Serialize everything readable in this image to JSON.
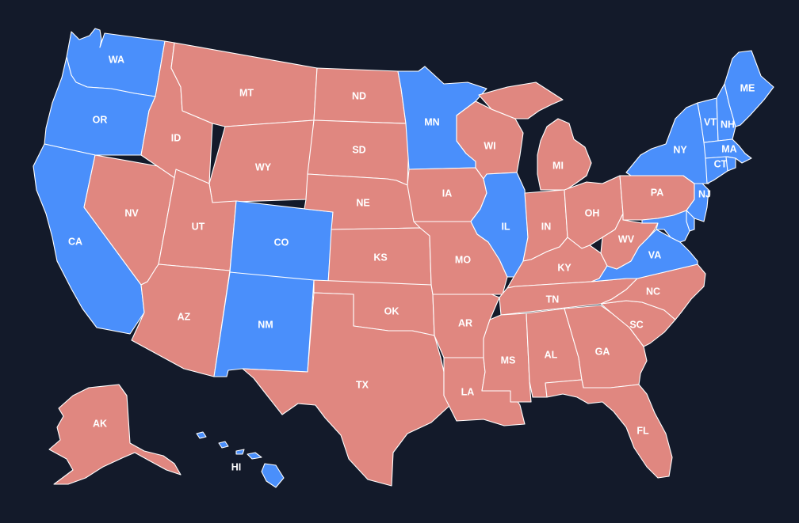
{
  "colors": {
    "background": "#131a2a",
    "blue": "#4a8ffb",
    "red": "#e08780",
    "border": "#ffffff",
    "label": "#ffffff"
  },
  "states": [
    {
      "code": "WA",
      "color": "blue"
    },
    {
      "code": "OR",
      "color": "blue"
    },
    {
      "code": "CA",
      "color": "blue"
    },
    {
      "code": "NV",
      "color": "red"
    },
    {
      "code": "ID",
      "color": "red"
    },
    {
      "code": "MT",
      "color": "red"
    },
    {
      "code": "WY",
      "color": "red"
    },
    {
      "code": "UT",
      "color": "red"
    },
    {
      "code": "AZ",
      "color": "red"
    },
    {
      "code": "CO",
      "color": "blue"
    },
    {
      "code": "NM",
      "color": "blue"
    },
    {
      "code": "ND",
      "color": "red"
    },
    {
      "code": "SD",
      "color": "red"
    },
    {
      "code": "NE",
      "color": "red"
    },
    {
      "code": "KS",
      "color": "red"
    },
    {
      "code": "OK",
      "color": "red"
    },
    {
      "code": "TX",
      "color": "red"
    },
    {
      "code": "MN",
      "color": "blue"
    },
    {
      "code": "IA",
      "color": "red"
    },
    {
      "code": "MO",
      "color": "red"
    },
    {
      "code": "AR",
      "color": "red"
    },
    {
      "code": "LA",
      "color": "red"
    },
    {
      "code": "WI",
      "color": "red"
    },
    {
      "code": "IL",
      "color": "blue"
    },
    {
      "code": "MI",
      "color": "red"
    },
    {
      "code": "IN",
      "color": "red"
    },
    {
      "code": "OH",
      "color": "red"
    },
    {
      "code": "KY",
      "color": "red"
    },
    {
      "code": "TN",
      "color": "red"
    },
    {
      "code": "MS",
      "color": "red"
    },
    {
      "code": "AL",
      "color": "red"
    },
    {
      "code": "GA",
      "color": "red"
    },
    {
      "code": "FL",
      "color": "red"
    },
    {
      "code": "SC",
      "color": "red"
    },
    {
      "code": "NC",
      "color": "red"
    },
    {
      "code": "VA",
      "color": "blue"
    },
    {
      "code": "WV",
      "color": "red"
    },
    {
      "code": "PA",
      "color": "red"
    },
    {
      "code": "NY",
      "color": "blue"
    },
    {
      "code": "NJ",
      "color": "blue"
    },
    {
      "code": "DE",
      "color": "blue"
    },
    {
      "code": "MD",
      "color": "blue"
    },
    {
      "code": "CT",
      "color": "blue"
    },
    {
      "code": "RI",
      "color": "blue"
    },
    {
      "code": "MA",
      "color": "blue"
    },
    {
      "code": "VT",
      "color": "blue"
    },
    {
      "code": "NH",
      "color": "blue"
    },
    {
      "code": "ME",
      "color": "blue"
    },
    {
      "code": "AK",
      "color": "red"
    },
    {
      "code": "HI",
      "color": "blue"
    }
  ]
}
